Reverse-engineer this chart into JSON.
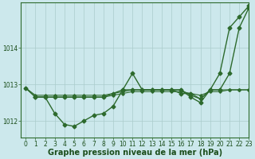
{
  "background_color": "#cce8ec",
  "grid_color": "#aacccc",
  "line_color": "#2d6a2d",
  "xlabel": "Graphe pression niveau de la mer (hPa)",
  "xlabel_fontsize": 7.0,
  "xlabel_color": "#1a4d1a",
  "tick_label_color": "#1a4d1a",
  "tick_fontsize": 5.5,
  "ylim": [
    1011.55,
    1015.25
  ],
  "xlim": [
    -0.5,
    23
  ],
  "yticks": [
    1012,
    1013,
    1014
  ],
  "xticks": [
    0,
    1,
    2,
    3,
    4,
    5,
    6,
    7,
    8,
    9,
    10,
    11,
    12,
    13,
    14,
    15,
    16,
    17,
    18,
    19,
    20,
    21,
    22,
    23
  ],
  "series": [
    {
      "x": [
        0,
        1,
        2,
        3,
        4,
        5,
        6,
        7,
        8,
        9,
        10,
        11,
        12,
        13,
        14,
        15,
        16,
        17,
        18,
        19,
        20,
        21,
        22,
        23
      ],
      "y": [
        1012.9,
        1012.65,
        1012.65,
        1012.2,
        1011.9,
        1011.85,
        1012.0,
        1012.15,
        1012.2,
        1012.4,
        1012.85,
        1013.3,
        1012.85,
        1012.85,
        1012.85,
        1012.85,
        1012.75,
        1012.75,
        1012.6,
        1012.85,
        1013.3,
        1014.55,
        1014.85,
        1015.15
      ],
      "marker": "D",
      "markersize": 2.5,
      "linewidth": 1.0,
      "zorder": 3
    },
    {
      "x": [
        0,
        1,
        2,
        3,
        4,
        5,
        6,
        7,
        8,
        9,
        10,
        11,
        12,
        13,
        14,
        15,
        16,
        17,
        18,
        19,
        20,
        21,
        22,
        23
      ],
      "y": [
        1012.9,
        1012.65,
        1012.65,
        1012.65,
        1012.65,
        1012.65,
        1012.65,
        1012.65,
        1012.65,
        1012.7,
        1012.75,
        1012.8,
        1012.8,
        1012.8,
        1012.8,
        1012.8,
        1012.8,
        1012.75,
        1012.7,
        1012.8,
        1012.8,
        1012.85,
        1012.85,
        1012.85
      ],
      "marker": "D",
      "markersize": 1.8,
      "linewidth": 0.8,
      "zorder": 2
    },
    {
      "x": [
        0,
        1,
        2,
        3,
        4,
        5,
        6,
        7,
        8,
        9,
        10,
        11,
        12,
        13,
        14,
        15,
        16,
        17,
        18,
        19,
        20,
        21,
        22,
        23
      ],
      "y": [
        1012.9,
        1012.7,
        1012.7,
        1012.7,
        1012.7,
        1012.7,
        1012.7,
        1012.7,
        1012.7,
        1012.75,
        1012.8,
        1012.85,
        1012.85,
        1012.85,
        1012.85,
        1012.85,
        1012.85,
        1012.7,
        1012.6,
        1012.85,
        1012.85,
        1012.85,
        1012.85,
        1012.85
      ],
      "marker": "D",
      "markersize": 1.8,
      "linewidth": 0.8,
      "zorder": 2
    },
    {
      "x": [
        1,
        2,
        3,
        4,
        5,
        6,
        7,
        8,
        9,
        10,
        11,
        12,
        13,
        14,
        15,
        16,
        17,
        18,
        19,
        20,
        21,
        22,
        23
      ],
      "y": [
        1012.65,
        1012.65,
        1012.65,
        1012.65,
        1012.65,
        1012.65,
        1012.65,
        1012.65,
        1012.75,
        1012.85,
        1012.85,
        1012.85,
        1012.85,
        1012.85,
        1012.85,
        1012.85,
        1012.65,
        1012.5,
        1012.85,
        1012.85,
        1013.3,
        1014.55,
        1015.1
      ],
      "marker": "D",
      "markersize": 2.5,
      "linewidth": 1.0,
      "zorder": 3
    }
  ]
}
